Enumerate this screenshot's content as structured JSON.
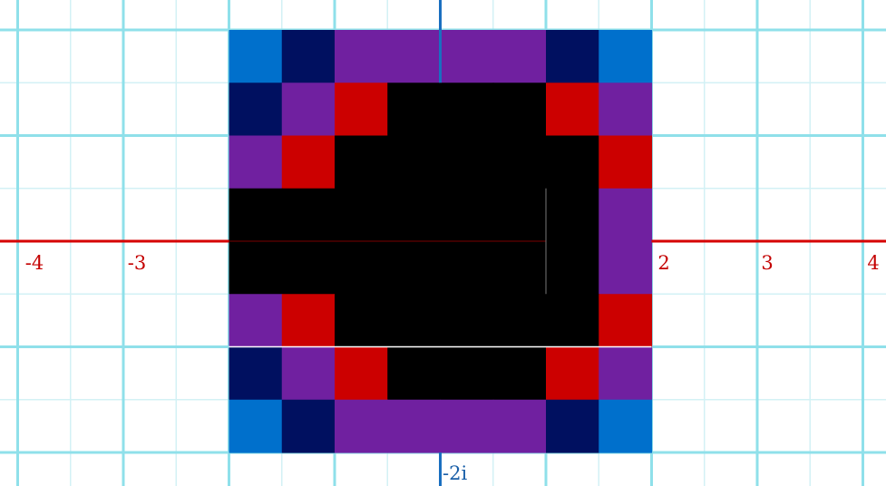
{
  "colors": {
    "background": "#ffffff",
    "grid_major": "#8fe0ea",
    "grid_minor": "#d3f1f5",
    "real_axis": "#d60000",
    "imag_axis": "#1a6fc0",
    "real_label": "#c40000",
    "imag_label": "#1a5fa8",
    "palette": {
      "K": "#000000",
      "R": "#cc0000",
      "P": "#7020a0",
      "N": "#001060",
      "B": "#0070cc"
    }
  },
  "real_axis_labels": [
    "-4",
    "-3",
    "2",
    "3",
    "4"
  ],
  "imag_axis_labels": [
    "-2i"
  ],
  "escape_grid": {
    "x_range": [
      -2,
      2
    ],
    "y_range": [
      -2,
      2
    ],
    "rows": [
      [
        "B",
        "N",
        "P",
        "P",
        "P",
        "P",
        "N",
        "B"
      ],
      [
        "N",
        "P",
        "R",
        "K",
        "K",
        "K",
        "R",
        "P"
      ],
      [
        "P",
        "R",
        "K",
        "K",
        "K",
        "K",
        "K",
        "R"
      ],
      [
        "K",
        "K",
        "K",
        "K",
        "K",
        "K",
        "K",
        "P"
      ],
      [
        "K",
        "K",
        "K",
        "K",
        "K",
        "K",
        "K",
        "P"
      ],
      [
        "P",
        "R",
        "K",
        "K",
        "K",
        "K",
        "K",
        "R"
      ],
      [
        "N",
        "P",
        "R",
        "K",
        "K",
        "K",
        "R",
        "P"
      ],
      [
        "B",
        "N",
        "P",
        "P",
        "P",
        "P",
        "N",
        "B"
      ]
    ]
  }
}
